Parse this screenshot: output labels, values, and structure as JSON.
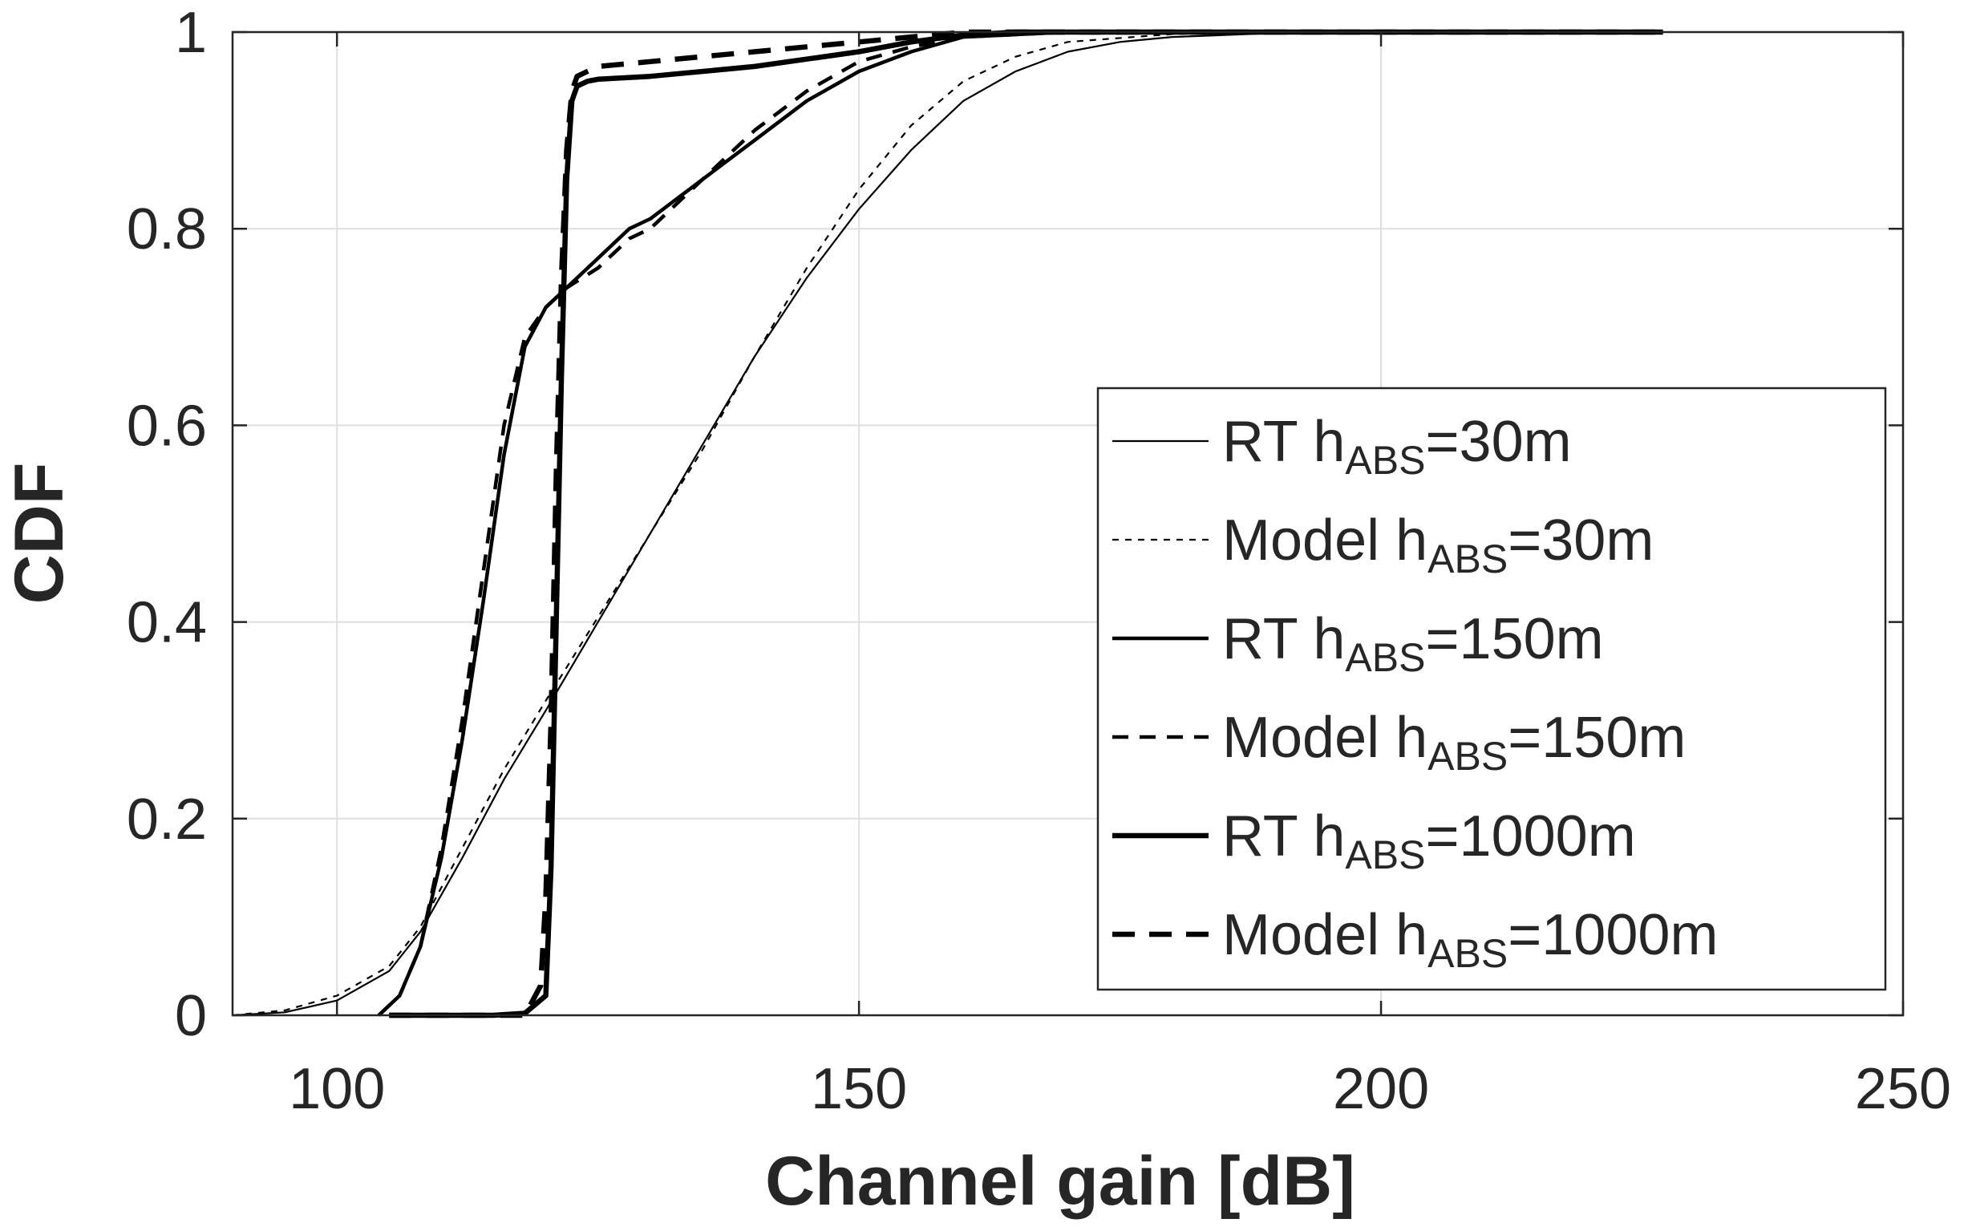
{
  "chart_data": {
    "type": "line",
    "xlabel": "Channel gain [dB]",
    "ylabel": "CDF",
    "xlim": [
      90,
      250
    ],
    "ylim": [
      0,
      1
    ],
    "xticks": [
      100,
      150,
      200,
      250
    ],
    "yticks": [
      0,
      0.2,
      0.4,
      0.6,
      0.8,
      1
    ],
    "xtick_labels": [
      "100",
      "150",
      "200",
      "250"
    ],
    "ytick_labels": [
      "0",
      "0.2",
      "0.4",
      "0.6",
      "0.8",
      "1"
    ],
    "grid": true,
    "legend_position": "bottom-right",
    "series": [
      {
        "legend_main": "RT  h",
        "legend_sub": "ABS",
        "legend_tail": "=30m",
        "color": "#000000",
        "style": "solid",
        "weight": "thin",
        "x": [
          90,
          95,
          100,
          105,
          108,
          112,
          116,
          120,
          125,
          130,
          135,
          140,
          145,
          150,
          155,
          160,
          165,
          170,
          175,
          180,
          190,
          200,
          227
        ],
        "y": [
          0,
          0.003,
          0.015,
          0.045,
          0.085,
          0.16,
          0.24,
          0.31,
          0.4,
          0.49,
          0.58,
          0.67,
          0.75,
          0.82,
          0.88,
          0.93,
          0.96,
          0.98,
          0.99,
          0.995,
          0.999,
          1.0,
          1.0
        ]
      },
      {
        "legend_main": "Model  h",
        "legend_sub": "ABS",
        "legend_tail": "=30m",
        "color": "#000000",
        "style": "dotted",
        "weight": "thin",
        "x": [
          90,
          95,
          100,
          105,
          108,
          112,
          116,
          120,
          125,
          130,
          135,
          140,
          145,
          150,
          155,
          160,
          165,
          170,
          180,
          190,
          200,
          227
        ],
        "y": [
          0,
          0.005,
          0.02,
          0.05,
          0.09,
          0.17,
          0.25,
          0.32,
          0.405,
          0.49,
          0.575,
          0.67,
          0.76,
          0.84,
          0.905,
          0.95,
          0.975,
          0.99,
          0.998,
          1.0,
          1.0,
          1.0
        ]
      },
      {
        "legend_main": "RT  h",
        "legend_sub": "ABS",
        "legend_tail": "=150m",
        "color": "#000000",
        "style": "solid",
        "weight": "medium",
        "x": [
          104,
          106,
          108,
          110,
          112,
          114,
          116,
          118,
          120,
          122,
          125,
          128,
          130,
          135,
          140,
          145,
          150,
          155,
          160,
          170,
          180,
          227
        ],
        "y": [
          0,
          0.02,
          0.07,
          0.16,
          0.28,
          0.42,
          0.57,
          0.68,
          0.72,
          0.74,
          0.77,
          0.8,
          0.81,
          0.85,
          0.89,
          0.93,
          0.96,
          0.98,
          0.995,
          1.0,
          1.0,
          1.0
        ]
      },
      {
        "legend_main": "Model  h",
        "legend_sub": "ABS",
        "legend_tail": "=150m",
        "color": "#000000",
        "style": "dashed",
        "weight": "medium",
        "x": [
          104,
          106,
          108,
          110,
          112,
          114,
          116,
          118,
          120,
          122,
          125,
          128,
          130,
          135,
          140,
          145,
          150,
          155,
          160,
          170,
          180,
          227
        ],
        "y": [
          0,
          0.02,
          0.07,
          0.17,
          0.3,
          0.45,
          0.6,
          0.69,
          0.72,
          0.74,
          0.76,
          0.79,
          0.8,
          0.85,
          0.9,
          0.94,
          0.97,
          0.985,
          0.995,
          1.0,
          1.0,
          1.0
        ]
      },
      {
        "legend_main": "RT  h",
        "legend_sub": "ABS",
        "legend_tail": "=1000m",
        "color": "#000000",
        "style": "solid",
        "weight": "thick",
        "x": [
          105,
          110,
          115,
          118,
          120,
          120.5,
          121,
          121.5,
          122,
          122.5,
          123,
          124,
          125,
          130,
          140,
          150,
          155,
          160,
          165,
          180,
          200,
          227
        ],
        "y": [
          0,
          0,
          0,
          0.002,
          0.02,
          0.15,
          0.4,
          0.65,
          0.85,
          0.93,
          0.945,
          0.95,
          0.952,
          0.955,
          0.965,
          0.98,
          0.99,
          0.997,
          1.0,
          1.0,
          1.0,
          1.0
        ]
      },
      {
        "legend_main": "Model  h",
        "legend_sub": "ABS",
        "legend_tail": "=1000m",
        "color": "#000000",
        "style": "dashed",
        "weight": "thick",
        "x": [
          105,
          110,
          115,
          118,
          119.5,
          120,
          120.5,
          121,
          121.5,
          122,
          122.5,
          123,
          124,
          125,
          130,
          140,
          150,
          155,
          160,
          165,
          180,
          200,
          227
        ],
        "y": [
          0,
          0,
          0,
          0,
          0.03,
          0.12,
          0.3,
          0.55,
          0.75,
          0.88,
          0.94,
          0.955,
          0.96,
          0.965,
          0.97,
          0.98,
          0.99,
          0.995,
          1.0,
          1.0,
          1.0,
          1.0,
          1.0
        ]
      }
    ]
  }
}
